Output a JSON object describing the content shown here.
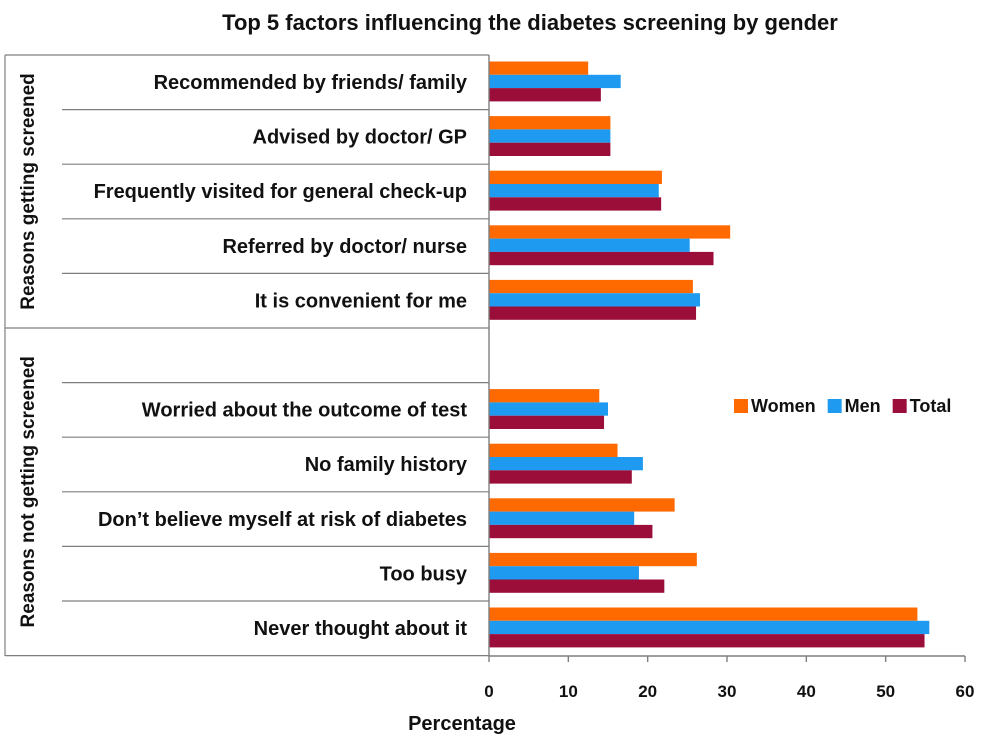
{
  "chart_data": {
    "type": "bar",
    "orientation": "horizontal",
    "title": "Top 5 factors influencing the diabetes screening by gender",
    "xlabel": "Percentage",
    "ylabel": "",
    "xlim": [
      0,
      60
    ],
    "xticks": [
      0,
      10,
      20,
      30,
      40,
      50,
      60
    ],
    "legend_position": "right-middle",
    "groups": [
      {
        "label": "Reasons getting screened",
        "categories": [
          "Recommended by friends/ family",
          "Advised by doctor/ GP",
          "Frequently visited for general check-up",
          "Referred by doctor/ nurse",
          "It is convenient for me"
        ]
      },
      {
        "label": "Reasons not getting screened",
        "categories": [
          "Worried about the outcome of test",
          "No family history",
          "Don’t believe myself at risk of diabetes",
          "Too busy",
          "Never thought about it"
        ]
      }
    ],
    "categories": [
      "Recommended by friends/ family",
      "Advised by doctor/ GP",
      "Frequently visited for general check-up",
      "Referred by doctor/ nurse",
      "It is convenient for me",
      "Worried about the outcome of test",
      "No family history",
      "Don’t believe myself at risk of diabetes",
      "Too busy",
      "Never thought about it"
    ],
    "series": [
      {
        "name": "Women",
        "color": "#FF6A00",
        "values": [
          12.5,
          15.3,
          21.8,
          30.4,
          25.7,
          13.9,
          16.2,
          23.4,
          26.2,
          54.0
        ]
      },
      {
        "name": "Men",
        "color": "#1E9BF0",
        "values": [
          16.6,
          15.3,
          21.4,
          25.3,
          26.6,
          15.0,
          19.4,
          18.3,
          18.9,
          55.5
        ]
      },
      {
        "name": "Total",
        "color": "#9B0E3A",
        "values": [
          14.1,
          15.3,
          21.7,
          28.3,
          26.1,
          14.5,
          18.0,
          20.6,
          22.1,
          54.9
        ]
      }
    ]
  }
}
